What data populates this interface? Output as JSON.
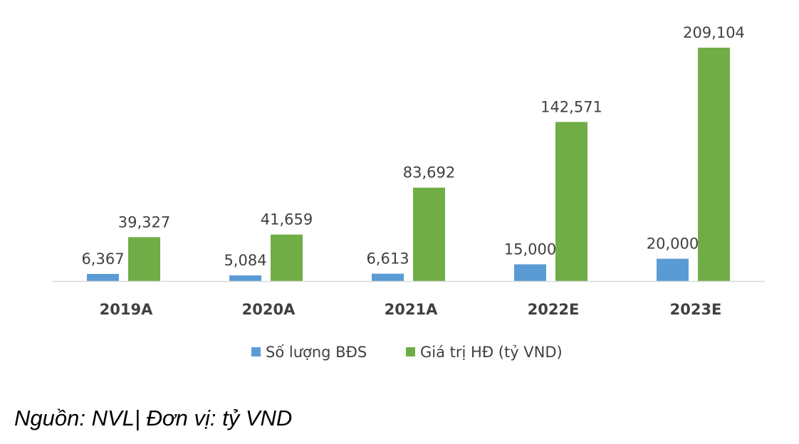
{
  "chart_data": {
    "type": "bar",
    "categories": [
      "2019A",
      "2020A",
      "2021A",
      "2022E",
      "2023E"
    ],
    "series": [
      {
        "name": "Số lượng BĐS",
        "values": [
          6367,
          5084,
          6613,
          15000,
          20000
        ],
        "labels": [
          "6,367",
          "5,084",
          "6,613",
          "15,000",
          "20,000"
        ],
        "color": "#5B9BD5"
      },
      {
        "name": "Giá trị HĐ (tỷ VND)",
        "values": [
          39327,
          41659,
          83692,
          142571,
          209104
        ],
        "labels": [
          "39,327",
          "41,659",
          "83,692",
          "142,571",
          "209,104"
        ],
        "color": "#70AD47"
      }
    ],
    "title": "",
    "xlabel": "",
    "ylabel": "",
    "ylim": [
      0,
      209104
    ],
    "grid": false,
    "legend": "bottom"
  },
  "source_note": "Nguồn: NVL| Đơn vị: tỷ VND"
}
